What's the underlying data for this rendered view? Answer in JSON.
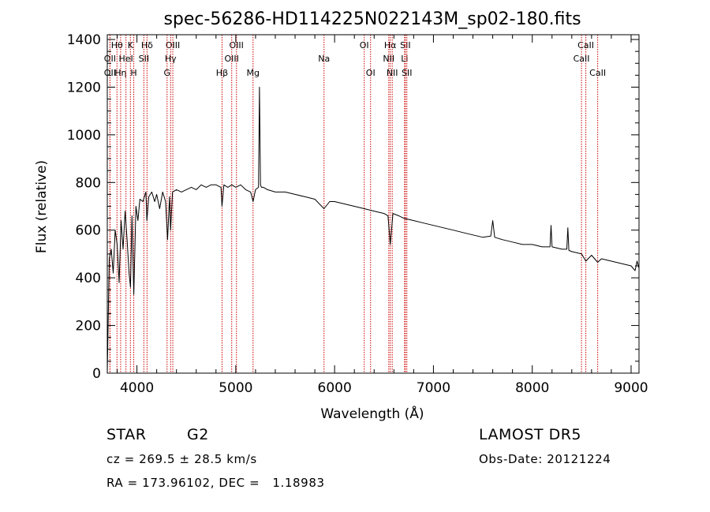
{
  "chart_data": {
    "type": "line",
    "title": "spec-56286-HD114225N022143M_sp02-180.fits",
    "xlabel": "Wavelength (Å)",
    "ylabel": "Flux (relative)",
    "xlim": [
      3700,
      9080
    ],
    "ylim": [
      0,
      1420
    ],
    "xticks": [
      4000,
      5000,
      6000,
      7000,
      8000,
      9000
    ],
    "yticks": [
      0,
      200,
      400,
      600,
      800,
      1000,
      1200,
      1400
    ],
    "grid": false,
    "line_color": "#000000",
    "marker_color": "#cc0000",
    "spectrum": {
      "x": [
        3700,
        3720,
        3740,
        3760,
        3780,
        3800,
        3820,
        3840,
        3860,
        3880,
        3900,
        3920,
        3935,
        3950,
        3968,
        3990,
        4010,
        4030,
        4060,
        4090,
        4101,
        4120,
        4150,
        4180,
        4200,
        4230,
        4260,
        4290,
        4310,
        4330,
        4340,
        4360,
        4400,
        4450,
        4500,
        4550,
        4600,
        4650,
        4700,
        4750,
        4800,
        4850,
        4861,
        4880,
        4920,
        4960,
        5000,
        5050,
        5100,
        5150,
        5175,
        5200,
        5230,
        5240,
        5250,
        5260,
        5280,
        5320,
        5400,
        5500,
        5600,
        5700,
        5800,
        5893,
        5950,
        6000,
        6100,
        6200,
        6300,
        6400,
        6500,
        6540,
        6563,
        6590,
        6650,
        6700,
        6800,
        6900,
        7000,
        7100,
        7200,
        7300,
        7400,
        7500,
        7580,
        7600,
        7620,
        7700,
        7800,
        7900,
        8000,
        8100,
        8180,
        8190,
        8200,
        8300,
        8350,
        8360,
        8370,
        8400,
        8500,
        8542,
        8600,
        8662,
        8700,
        8800,
        8900,
        9000,
        9040,
        9060,
        9080
      ],
      "flux": [
        0,
        480,
        520,
        420,
        600,
        540,
        380,
        640,
        520,
        680,
        560,
        420,
        360,
        660,
        330,
        700,
        640,
        730,
        720,
        760,
        640,
        740,
        760,
        720,
        750,
        690,
        760,
        720,
        560,
        740,
        600,
        760,
        770,
        760,
        770,
        780,
        770,
        790,
        780,
        790,
        790,
        780,
        700,
        790,
        780,
        790,
        780,
        790,
        770,
        760,
        720,
        770,
        780,
        1200,
        790,
        780,
        780,
        770,
        760,
        760,
        750,
        740,
        730,
        690,
        720,
        720,
        710,
        700,
        690,
        680,
        670,
        660,
        540,
        670,
        660,
        650,
        640,
        630,
        620,
        610,
        600,
        590,
        580,
        570,
        575,
        640,
        570,
        560,
        550,
        540,
        540,
        530,
        530,
        620,
        530,
        520,
        520,
        610,
        515,
        510,
        500,
        470,
        495,
        465,
        480,
        470,
        460,
        450,
        430,
        470,
        440
      ]
    },
    "line_markers": [
      {
        "label": "Hθ",
        "x": 3798,
        "row": 1
      },
      {
        "label": "OII",
        "x": 3727,
        "row": 2
      },
      {
        "label": "OII",
        "x": 3727,
        "row": 3
      },
      {
        "label": "Hη",
        "x": 3835,
        "row": 3
      },
      {
        "label": "K",
        "x": 3934,
        "row": 1
      },
      {
        "label": "HeI",
        "x": 3889,
        "row": 2
      },
      {
        "label": "H",
        "x": 3968,
        "row": 3
      },
      {
        "label": "Hδ",
        "x": 4102,
        "row": 1
      },
      {
        "label": "SII",
        "x": 4070,
        "row": 2
      },
      {
        "label": "OIII",
        "x": 4363,
        "row": 1
      },
      {
        "label": "Hγ",
        "x": 4341,
        "row": 2
      },
      {
        "label": "G",
        "x": 4305,
        "row": 3
      },
      {
        "label": "Hβ",
        "x": 4861,
        "row": 3
      },
      {
        "label": "OIII",
        "x": 5007,
        "row": 1
      },
      {
        "label": "OIII",
        "x": 4959,
        "row": 2
      },
      {
        "label": "Mg",
        "x": 5175,
        "row": 3
      },
      {
        "label": "Na",
        "x": 5893,
        "row": 2
      },
      {
        "label": "OI",
        "x": 6300,
        "row": 1
      },
      {
        "label": "OI",
        "x": 6364,
        "row": 3
      },
      {
        "label": "Hα",
        "x": 6563,
        "row": 1
      },
      {
        "label": "SII",
        "x": 6716,
        "row": 1
      },
      {
        "label": "NII",
        "x": 6548,
        "row": 2
      },
      {
        "label": "Li",
        "x": 6708,
        "row": 2
      },
      {
        "label": "NII",
        "x": 6583,
        "row": 3
      },
      {
        "label": "SII",
        "x": 6731,
        "row": 3
      },
      {
        "label": "CaII",
        "x": 8542,
        "row": 1
      },
      {
        "label": "CaII",
        "x": 8498,
        "row": 2
      },
      {
        "label": "CaII",
        "x": 8662,
        "row": 3
      }
    ]
  },
  "info": {
    "class_label": "STAR",
    "subclass_label": "G2",
    "survey_label": "LAMOST DR5",
    "cz_text": "cz = 269.5 ± 28.5 km/s",
    "obsdate_text": "Obs-Date: 20121224",
    "radec_text": "RA = 173.96102, DEC =   1.18983"
  }
}
